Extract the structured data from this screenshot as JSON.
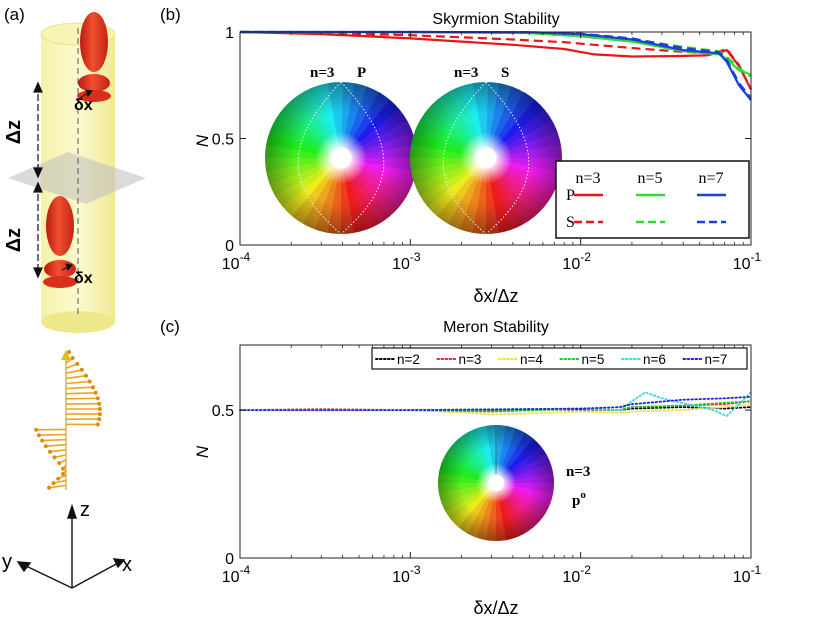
{
  "panel_labels": {
    "a": "(a)",
    "b": "(b)",
    "c": "(c)"
  },
  "illustration": {
    "dz_label": "Δz",
    "dx_label": "δx",
    "axes": {
      "z": "z",
      "x": "x",
      "y": "y"
    }
  },
  "colors": {
    "red": "#e8161b",
    "green": "#2fdc2f",
    "blue": "#1c3fdc",
    "black": "#000000",
    "yellow": "#f5e22a",
    "cyan": "#39d9e6",
    "meron_blue": "#1f24d6",
    "meron_red": "#e02a2a",
    "meron_green": "#27c627",
    "cylinder": "#f6f2a0",
    "plane": "#c8c8c8",
    "lobe": "#e0341f",
    "arrow": "#f2a21c"
  },
  "chart_data": [
    {
      "id": "skyrmion",
      "type": "line",
      "title": "Skyrmion Stability",
      "xlabel": "δx/Δz",
      "ylabel": "N",
      "xscale": "log",
      "xlim": [
        0.0001,
        0.1
      ],
      "ylim": [
        0,
        1
      ],
      "xticks": [
        0.0001,
        0.001,
        0.01,
        0.1
      ],
      "xtick_base": "10",
      "xtick_exponents": [
        "-4",
        "-3",
        "-2",
        "-1"
      ],
      "yticks": [
        0,
        0.5,
        1
      ],
      "ytick_labels": [
        "0",
        "0.5",
        "1"
      ],
      "legend": {
        "position": "lower-right",
        "column_headers": [
          "n=3",
          "n=5",
          "n=7"
        ],
        "row_labels": [
          "P",
          "S"
        ]
      },
      "insets": [
        {
          "label_n": "n=3",
          "label_mode": "P"
        },
        {
          "label_n": "n=3",
          "label_mode": "S"
        }
      ],
      "series": [
        {
          "name": "P n=3",
          "color": "red",
          "dash": "solid",
          "x": [
            0.0001,
            0.0003,
            0.001,
            0.002,
            0.004,
            0.008,
            0.012,
            0.02,
            0.035,
            0.055,
            0.066,
            0.072,
            0.085,
            0.1
          ],
          "y": [
            1.0,
            0.99,
            0.97,
            0.955,
            0.94,
            0.92,
            0.895,
            0.885,
            0.887,
            0.89,
            0.905,
            0.915,
            0.84,
            0.73
          ]
        },
        {
          "name": "S n=3",
          "color": "red",
          "dash": "dashed",
          "x": [
            0.0001,
            0.0003,
            0.001,
            0.002,
            0.004,
            0.008,
            0.012,
            0.02,
            0.035,
            0.055,
            0.066,
            0.072,
            0.085,
            0.1
          ],
          "y": [
            1.0,
            0.995,
            0.985,
            0.975,
            0.965,
            0.952,
            0.94,
            0.925,
            0.91,
            0.9,
            0.91,
            0.92,
            0.845,
            0.73
          ]
        },
        {
          "name": "P n=5",
          "color": "green",
          "dash": "solid",
          "x": [
            0.0001,
            0.001,
            0.005,
            0.01,
            0.02,
            0.04,
            0.065,
            0.072,
            0.085,
            0.1
          ],
          "y": [
            1.0,
            0.999,
            0.995,
            0.98,
            0.955,
            0.91,
            0.895,
            0.875,
            0.82,
            0.8
          ]
        },
        {
          "name": "S n=5",
          "color": "green",
          "dash": "dashed",
          "x": [
            0.0001,
            0.001,
            0.005,
            0.01,
            0.02,
            0.04,
            0.065,
            0.072,
            0.085,
            0.1
          ],
          "y": [
            1.0,
            0.999,
            0.997,
            0.985,
            0.965,
            0.93,
            0.91,
            0.885,
            0.83,
            0.79
          ]
        },
        {
          "name": "P n=7",
          "color": "blue",
          "dash": "solid",
          "x": [
            0.0001,
            0.001,
            0.005,
            0.01,
            0.02,
            0.04,
            0.065,
            0.072,
            0.085,
            0.1
          ],
          "y": [
            1.0,
            1.0,
            0.999,
            0.99,
            0.965,
            0.915,
            0.9,
            0.86,
            0.75,
            0.68
          ]
        },
        {
          "name": "S n=7",
          "color": "blue",
          "dash": "dashed",
          "x": [
            0.0001,
            0.001,
            0.005,
            0.01,
            0.02,
            0.04,
            0.065,
            0.072,
            0.085,
            0.1
          ],
          "y": [
            1.0,
            1.0,
            0.999,
            0.992,
            0.97,
            0.925,
            0.905,
            0.87,
            0.76,
            0.69
          ]
        }
      ]
    },
    {
      "id": "meron",
      "type": "line",
      "title": "Meron Stability",
      "xlabel": "δx/Δz",
      "ylabel": "N",
      "xscale": "log",
      "xlim": [
        0.0001,
        0.1
      ],
      "ylim": [
        0,
        0.72
      ],
      "xticks": [
        0.0001,
        0.001,
        0.01,
        0.1
      ],
      "xtick_base": "10",
      "xtick_exponents": [
        "-4",
        "-3",
        "-2",
        "-1"
      ],
      "yticks": [
        0,
        0.5
      ],
      "ytick_labels": [
        "0",
        "0.5"
      ],
      "legend": {
        "position": "top"
      },
      "inset": {
        "label_n": "n=3",
        "label_mode": "p",
        "label_sup": "o"
      },
      "series": [
        {
          "name": "n=2",
          "color": "black",
          "dash": "dotted",
          "x": [
            0.0001,
            0.001,
            0.003,
            0.01,
            0.017,
            0.02,
            0.04,
            0.07,
            0.1
          ],
          "y": [
            0.5,
            0.5,
            0.5,
            0.502,
            0.5,
            0.505,
            0.51,
            0.505,
            0.51
          ]
        },
        {
          "name": "n=3",
          "color": "meron_red",
          "dash": "dotted",
          "x": [
            0.0001,
            0.0003,
            0.001,
            0.003,
            0.01,
            0.017,
            0.02,
            0.04,
            0.07,
            0.1
          ],
          "y": [
            0.5,
            0.503,
            0.5,
            0.495,
            0.505,
            0.5,
            0.51,
            0.515,
            0.52,
            0.53
          ]
        },
        {
          "name": "n=4",
          "color": "yellow",
          "dash": "dotted",
          "x": [
            0.0001,
            0.001,
            0.002,
            0.003,
            0.006,
            0.01,
            0.017,
            0.02,
            0.04,
            0.07,
            0.1
          ],
          "y": [
            0.5,
            0.5,
            0.492,
            0.485,
            0.49,
            0.495,
            0.49,
            0.495,
            0.5,
            0.51,
            0.52
          ]
        },
        {
          "name": "n=5",
          "color": "meron_green",
          "dash": "dotted",
          "x": [
            0.0001,
            0.001,
            0.003,
            0.01,
            0.017,
            0.02,
            0.04,
            0.07,
            0.1
          ],
          "y": [
            0.5,
            0.5,
            0.495,
            0.505,
            0.5,
            0.51,
            0.515,
            0.525,
            0.53
          ]
        },
        {
          "name": "n=6",
          "color": "cyan",
          "dash": "dotted",
          "x": [
            0.0001,
            0.001,
            0.01,
            0.017,
            0.02,
            0.024,
            0.03,
            0.06,
            0.072,
            0.085,
            0.1
          ],
          "y": [
            0.5,
            0.5,
            0.505,
            0.5,
            0.53,
            0.56,
            0.54,
            0.5,
            0.48,
            0.52,
            0.56
          ]
        },
        {
          "name": "n=7",
          "color": "meron_blue",
          "dash": "dotted",
          "x": [
            0.0001,
            0.001,
            0.01,
            0.017,
            0.02,
            0.04,
            0.07,
            0.1
          ],
          "y": [
            0.5,
            0.5,
            0.505,
            0.51,
            0.52,
            0.535,
            0.54,
            0.545
          ]
        }
      ]
    }
  ]
}
